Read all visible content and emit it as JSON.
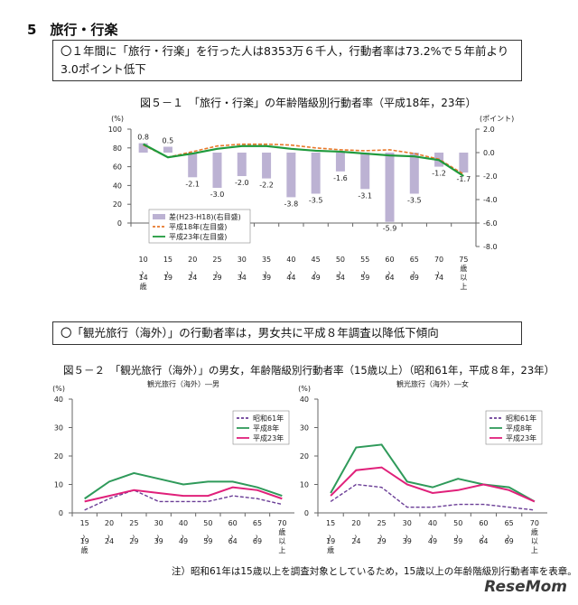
{
  "section_title": "5　旅行・行楽",
  "box1": "〇１年間に「旅行・行楽」を行った人は8353万６千人，行動者率は73.2%で５年前より3.0ポイント低下",
  "figure1_caption": "図５－１　「旅行・行楽」の年齢階級別行動者率（平成18年，23年）",
  "box2": "〇「観光旅行（海外）」の行動者率は，男女共に平成８年調査以降低下傾向",
  "figure2_caption": "図５－２　「観光旅行（海外）」の男女，年齢階級別行動者率（15歳以上）（昭和61年，平成８年，23年）",
  "note": "注）昭和61年は15歳以上を調査対象としているため，15歳以上の年齢階級別行動者率を表章。",
  "logo": "ReseMom",
  "chart_data": [
    {
      "type": "combo",
      "y_label": "(%)",
      "y2_label": "(ポイント)",
      "categories": [
        "10〜14歳",
        "15〜19",
        "20〜24",
        "25〜29",
        "30〜34",
        "35〜39",
        "40〜44",
        "45〜49",
        "50〜54",
        "55〜59",
        "60〜64",
        "65〜69",
        "70〜74",
        "75歳以上"
      ],
      "ylim": [
        0,
        100
      ],
      "yticks": [
        0,
        20,
        40,
        60,
        80,
        100
      ],
      "y2lim": [
        -8,
        2
      ],
      "y2ticks": [
        {
          "value": 2,
          "label": "2.0"
        },
        {
          "value": 0,
          "label": "0.0"
        },
        {
          "value": -2,
          "label": "-2.0"
        },
        {
          "value": -4,
          "label": "-4.0"
        },
        {
          "value": -6,
          "label": "-6.0"
        },
        {
          "value": -8,
          "label": "-8.0"
        }
      ],
      "series": [
        {
          "name": "差(H23-H18)(右目盛)",
          "style": "bar",
          "axis": "y2",
          "color": "#bcb2d3",
          "values": [
            0.8,
            0.5,
            -2.1,
            -3.0,
            -2.0,
            -2.2,
            -3.8,
            -3.5,
            -1.6,
            -3.1,
            -5.9,
            -3.5,
            -1.2,
            -1.7
          ],
          "value_labels": [
            "0.8",
            "0.5",
            "-2.1",
            "-3.0",
            "-2.0",
            "-2.2",
            "-3.8",
            "-3.5",
            "-1.6",
            "-3.1",
            "-5.9",
            "-3.5",
            "-1.2",
            "-1.7"
          ]
        },
        {
          "name": "平成18年(左目盛)",
          "style": "line",
          "dash": true,
          "color": "#e8782a",
          "values": [
            83,
            70,
            76,
            82,
            84,
            84,
            83,
            80,
            78,
            77,
            78,
            74,
            68,
            52
          ]
        },
        {
          "name": "平成23年(左目盛)",
          "style": "line",
          "color": "#1f9a3c",
          "values": [
            84,
            70,
            74,
            79,
            82,
            82,
            79,
            77,
            76,
            74,
            72,
            71,
            67,
            50
          ]
        }
      ]
    },
    {
      "type": "line",
      "title": "観光旅行（海外）―男",
      "y_label": "(%)",
      "categories": [
        "15〜19歳",
        "20〜24",
        "25〜29",
        "30〜39",
        "40〜49",
        "50〜59",
        "60〜64",
        "65〜69",
        "70歳以上"
      ],
      "ylim": [
        0,
        40
      ],
      "yticks": [
        0,
        10,
        20,
        30,
        40
      ],
      "series": [
        {
          "name": "昭和61年",
          "dash": true,
          "color": "#6a3d96",
          "values": [
            1,
            5,
            8,
            4,
            4,
            4,
            6,
            5,
            3
          ]
        },
        {
          "name": "平成8年",
          "color": "#2f9a5a",
          "values": [
            5,
            11,
            14,
            12,
            10,
            11,
            11,
            9,
            6
          ]
        },
        {
          "name": "平成23年",
          "color": "#e0207a",
          "values": [
            4,
            6,
            8,
            7,
            6,
            6,
            9,
            8,
            5
          ]
        }
      ]
    },
    {
      "type": "line",
      "title": "観光旅行（海外）―女",
      "y_label": "(%)",
      "categories": [
        "15〜19歳",
        "20〜24",
        "25〜29",
        "30〜39",
        "40〜49",
        "50〜59",
        "60〜64",
        "65〜69",
        "70歳以上"
      ],
      "ylim": [
        0,
        40
      ],
      "yticks": [
        0,
        10,
        20,
        30,
        40
      ],
      "series": [
        {
          "name": "昭和61年",
          "dash": true,
          "color": "#6a3d96",
          "values": [
            4,
            10,
            9,
            2,
            2,
            3,
            3,
            2,
            1
          ]
        },
        {
          "name": "平成8年",
          "color": "#2f9a5a",
          "values": [
            7,
            23,
            24,
            11,
            9,
            12,
            10,
            9,
            4
          ]
        },
        {
          "name": "平成23年",
          "color": "#e0207a",
          "values": [
            6,
            15,
            16,
            10,
            7,
            8,
            10,
            8,
            4
          ]
        }
      ]
    }
  ]
}
